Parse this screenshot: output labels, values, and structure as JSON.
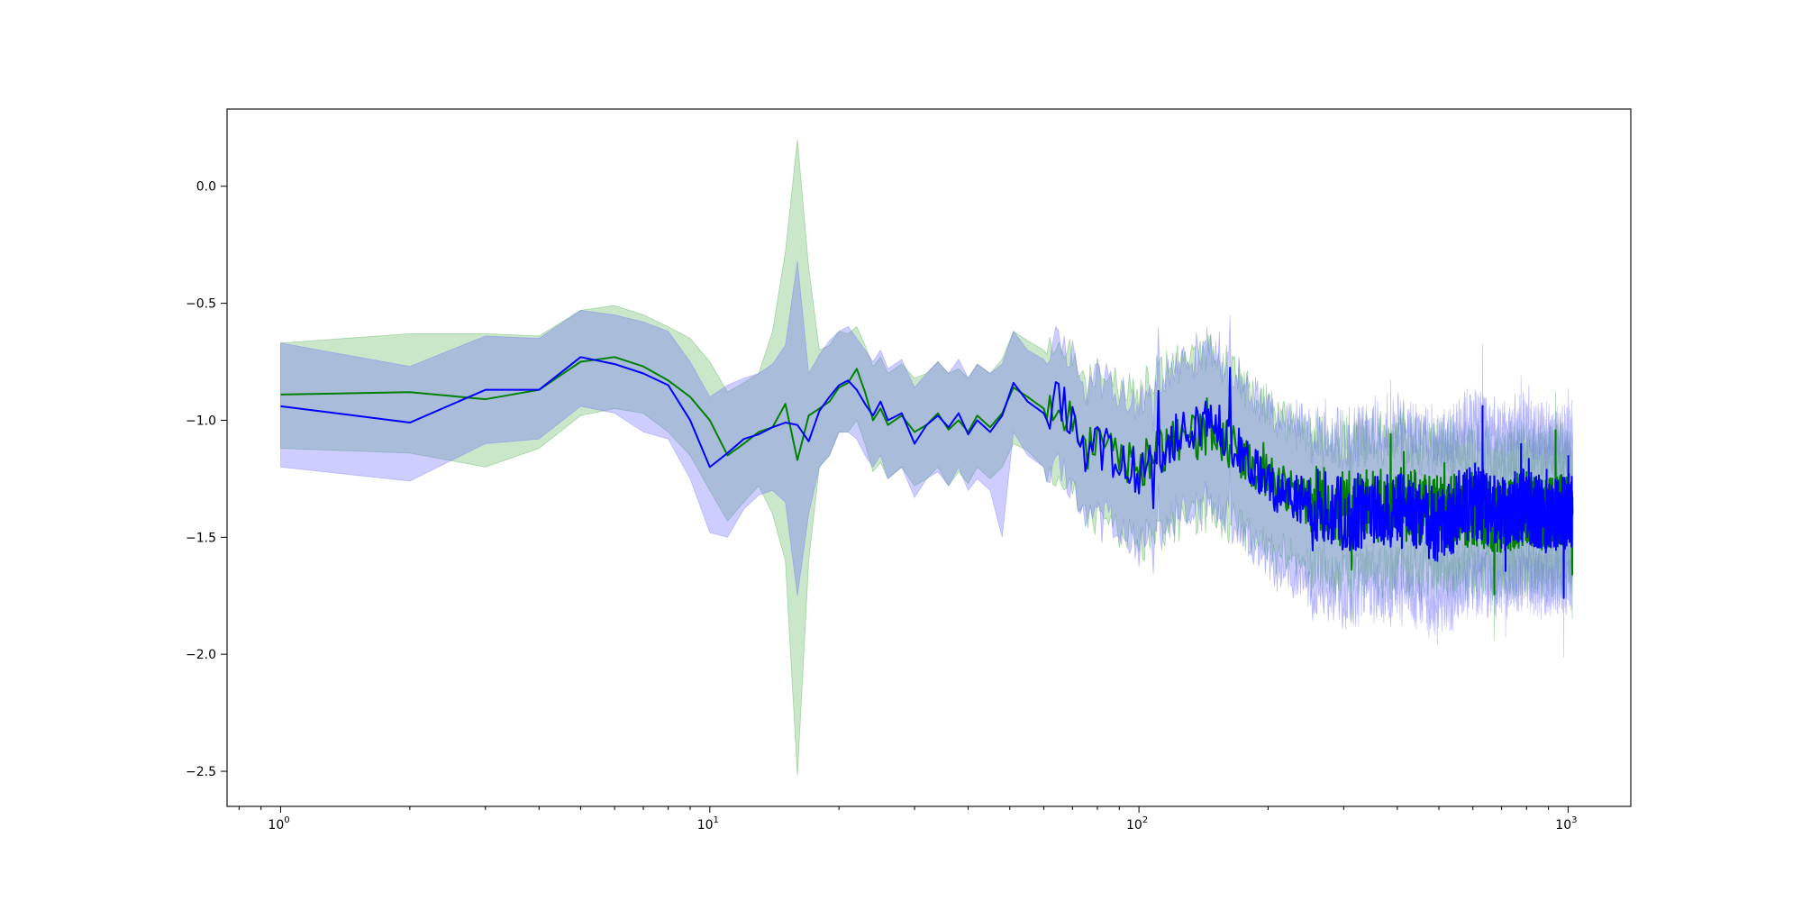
{
  "chart_data": {
    "type": "line",
    "x_scale": "log",
    "xlim": [
      0.75,
      1400
    ],
    "ylim": [
      -2.65,
      0.33
    ],
    "grid": false,
    "legend": "none",
    "x_ticks": [
      {
        "value": 1,
        "base": "10",
        "exp": "0"
      },
      {
        "value": 10,
        "base": "10",
        "exp": "1"
      },
      {
        "value": 100,
        "base": "10",
        "exp": "2"
      },
      {
        "value": 1000,
        "base": "10",
        "exp": "3"
      }
    ],
    "y_ticks": [
      {
        "value": 0.0,
        "label": "0.0"
      },
      {
        "value": -0.5,
        "label": "−0.5"
      },
      {
        "value": -1.0,
        "label": "−1.0"
      },
      {
        "value": -1.5,
        "label": "−1.5"
      },
      {
        "value": -2.0,
        "label": "−2.0"
      },
      {
        "value": -2.5,
        "label": "−2.5"
      }
    ],
    "x_range": [
      1,
      1024
    ],
    "series": [
      {
        "color": "#008000",
        "band_color": "#2ca02c",
        "band_opacity": 0.25,
        "x": [
          1,
          2,
          3,
          4,
          5,
          6,
          7,
          8,
          9,
          10,
          11,
          12,
          13,
          14,
          15,
          16,
          17,
          18,
          19,
          20,
          21,
          22,
          23,
          24,
          25,
          26,
          28,
          30,
          32,
          34,
          36,
          38,
          40,
          42,
          45,
          48,
          51,
          55,
          60,
          65,
          70,
          75,
          80,
          90,
          100,
          120,
          150,
          200,
          250,
          300,
          400,
          500,
          600,
          700,
          800,
          900,
          1024
        ],
        "mean": [
          -0.89,
          -0.88,
          -0.91,
          -0.87,
          -0.75,
          -0.73,
          -0.77,
          -0.83,
          -0.9,
          -1.0,
          -1.15,
          -1.1,
          -1.05,
          -1.03,
          -0.93,
          -1.17,
          -0.98,
          -0.95,
          -0.92,
          -0.86,
          -0.84,
          -0.78,
          -0.88,
          -1.0,
          -0.95,
          -1.02,
          -0.98,
          -1.05,
          -1.02,
          -0.97,
          -1.04,
          -1.0,
          -1.05,
          -0.98,
          -1.03,
          -0.97,
          -0.86,
          -0.9,
          -0.95,
          -0.92,
          -0.98,
          -1.15,
          -1.1,
          -1.15,
          -1.2,
          -1.1,
          -1.05,
          -1.25,
          -1.35,
          -1.38,
          -1.35,
          -1.4,
          -1.38,
          -1.42,
          -1.38,
          -1.4,
          -1.38
        ],
        "lower": [
          -1.12,
          -1.14,
          -1.2,
          -1.12,
          -0.98,
          -0.95,
          -0.97,
          -1.05,
          -1.15,
          -1.3,
          -1.43,
          -1.35,
          -1.28,
          -1.4,
          -1.6,
          -2.52,
          -1.6,
          -1.2,
          -1.15,
          -1.05,
          -1.05,
          -1.0,
          -1.1,
          -1.22,
          -1.18,
          -1.25,
          -1.2,
          -1.28,
          -1.25,
          -1.2,
          -1.28,
          -1.22,
          -1.27,
          -1.2,
          -1.25,
          -1.2,
          -1.1,
          -1.13,
          -1.2,
          -1.18,
          -1.25,
          -1.4,
          -1.4,
          -1.45,
          -1.5,
          -1.42,
          -1.35,
          -1.52,
          -1.6,
          -1.62,
          -1.6,
          -1.63,
          -1.6,
          -1.63,
          -1.6,
          -1.62,
          -1.58
        ],
        "upper": [
          -0.67,
          -0.63,
          -0.63,
          -0.64,
          -0.53,
          -0.51,
          -0.55,
          -0.6,
          -0.65,
          -0.75,
          -0.88,
          -0.84,
          -0.8,
          -0.62,
          -0.28,
          0.2,
          -0.35,
          -0.7,
          -0.68,
          -0.62,
          -0.63,
          -0.6,
          -0.68,
          -0.77,
          -0.73,
          -0.8,
          -0.76,
          -0.82,
          -0.8,
          -0.75,
          -0.8,
          -0.78,
          -0.82,
          -0.76,
          -0.8,
          -0.74,
          -0.62,
          -0.66,
          -0.7,
          -0.68,
          -0.72,
          -0.9,
          -0.85,
          -0.88,
          -0.92,
          -0.8,
          -0.75,
          -0.98,
          -1.1,
          -1.13,
          -1.1,
          -1.16,
          -1.14,
          -1.2,
          -1.15,
          -1.17,
          -1.16
        ]
      },
      {
        "color": "#0000ff",
        "band_color": "#6666ff",
        "band_opacity": 0.33,
        "x": [
          1,
          2,
          3,
          4,
          5,
          6,
          7,
          8,
          9,
          10,
          11,
          12,
          13,
          14,
          15,
          16,
          17,
          18,
          19,
          20,
          21,
          22,
          23,
          24,
          25,
          26,
          28,
          30,
          32,
          34,
          36,
          38,
          40,
          42,
          45,
          48,
          51,
          55,
          60,
          65,
          70,
          75,
          80,
          90,
          100,
          120,
          150,
          200,
          250,
          300,
          400,
          500,
          600,
          700,
          800,
          900,
          1024
        ],
        "mean": [
          -0.94,
          -1.01,
          -0.87,
          -0.87,
          -0.73,
          -0.76,
          -0.8,
          -0.85,
          -1.0,
          -1.2,
          -1.14,
          -1.08,
          -1.06,
          -1.03,
          -1.01,
          -1.02,
          -1.09,
          -0.96,
          -0.9,
          -0.85,
          -0.83,
          -0.87,
          -0.93,
          -0.98,
          -0.92,
          -1.0,
          -0.97,
          -1.1,
          -1.02,
          -0.98,
          -1.03,
          -0.97,
          -1.06,
          -1.0,
          -1.05,
          -0.98,
          -0.84,
          -0.92,
          -0.97,
          -0.9,
          -0.98,
          -1.18,
          -1.1,
          -1.18,
          -1.22,
          -1.08,
          -1.0,
          -1.28,
          -1.35,
          -1.4,
          -1.38,
          -1.45,
          -1.35,
          -1.4,
          -1.36,
          -1.42,
          -1.38
        ],
        "lower": [
          -1.2,
          -1.26,
          -1.1,
          -1.08,
          -0.94,
          -0.97,
          -1.05,
          -1.08,
          -1.25,
          -1.48,
          -1.5,
          -1.38,
          -1.32,
          -1.3,
          -1.35,
          -1.75,
          -1.4,
          -1.2,
          -1.15,
          -1.05,
          -1.05,
          -1.08,
          -1.15,
          -1.2,
          -1.15,
          -1.25,
          -1.2,
          -1.33,
          -1.25,
          -1.22,
          -1.28,
          -1.2,
          -1.3,
          -1.25,
          -1.3,
          -1.5,
          -1.05,
          -1.15,
          -1.2,
          -1.15,
          -1.22,
          -1.42,
          -1.38,
          -1.45,
          -1.5,
          -1.38,
          -1.32,
          -1.58,
          -1.68,
          -1.72,
          -1.7,
          -1.78,
          -1.66,
          -1.7,
          -1.65,
          -1.7,
          -1.66
        ],
        "upper": [
          -0.67,
          -0.77,
          -0.64,
          -0.65,
          -0.53,
          -0.55,
          -0.58,
          -0.62,
          -0.75,
          -0.9,
          -0.85,
          -0.82,
          -0.8,
          -0.76,
          -0.68,
          -0.32,
          -0.8,
          -0.72,
          -0.66,
          -0.62,
          -0.6,
          -0.65,
          -0.7,
          -0.75,
          -0.7,
          -0.78,
          -0.74,
          -0.86,
          -0.8,
          -0.75,
          -0.8,
          -0.74,
          -0.82,
          -0.76,
          -0.8,
          -0.76,
          -0.62,
          -0.7,
          -0.74,
          -0.68,
          -0.74,
          -0.94,
          -0.85,
          -0.92,
          -0.95,
          -0.8,
          -0.72,
          -1.0,
          -1.05,
          -1.1,
          -1.05,
          -1.12,
          -1.02,
          -1.08,
          -1.05,
          -1.1,
          -1.08
        ]
      }
    ]
  }
}
